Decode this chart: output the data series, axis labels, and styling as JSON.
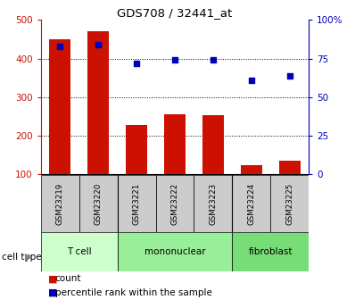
{
  "title": "GDS708 / 32441_at",
  "categories": [
    "GSM23219",
    "GSM23220",
    "GSM23221",
    "GSM23222",
    "GSM23223",
    "GSM23224",
    "GSM23225"
  ],
  "count_values": [
    450,
    470,
    228,
    255,
    252,
    122,
    135
  ],
  "percentile_values": [
    83,
    84,
    72,
    74,
    74,
    61,
    64
  ],
  "ylim_left": [
    100,
    500
  ],
  "ylim_right": [
    0,
    100
  ],
  "yticks_left": [
    100,
    200,
    300,
    400,
    500
  ],
  "yticks_right": [
    0,
    25,
    50,
    75,
    100
  ],
  "bar_color": "#cc1100",
  "dot_color": "#0000bb",
  "cell_type_groups": [
    {
      "label": "T cell",
      "start": 0,
      "end": 2,
      "color": "#ccffcc"
    },
    {
      "label": "mononuclear",
      "start": 2,
      "end": 5,
      "color": "#99ee99"
    },
    {
      "label": "fibroblast",
      "start": 5,
      "end": 7,
      "color": "#77dd77"
    }
  ],
  "cell_type_label": "cell type",
  "legend_count_label": "count",
  "legend_percentile_label": "percentile rank within the sample",
  "bar_width": 0.55,
  "sample_label_bg": "#cccccc",
  "grid_yticks": [
    200,
    300,
    400
  ]
}
